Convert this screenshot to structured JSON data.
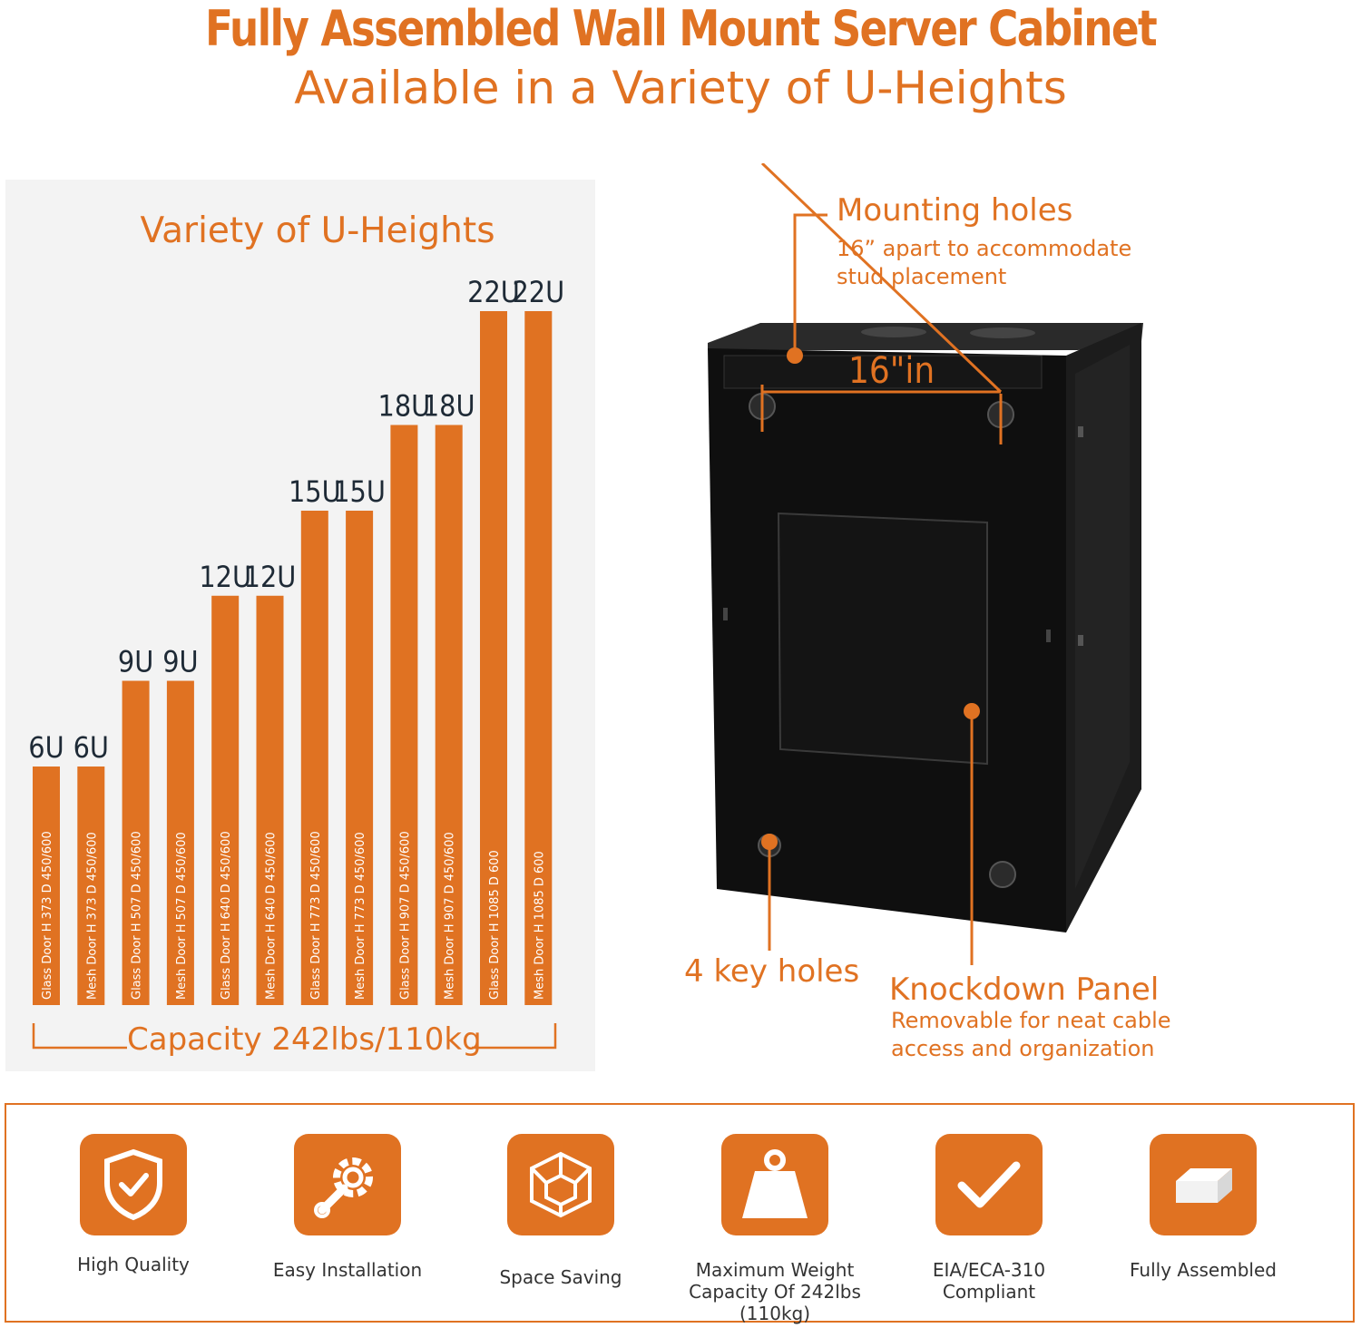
{
  "header": {
    "title": "Fully Assembled Wall Mount Server Cabinet",
    "subtitle": "Available in a Variety of U-Heights"
  },
  "colors": {
    "accent": "#e07222",
    "panel_bg": "#f3f3f3",
    "cabinet": "#111111",
    "label_dark": "#1e2a36"
  },
  "chart_data": {
    "type": "bar",
    "title": "Variety of U-Heights",
    "footer": "Capacity 242lbs/110kg",
    "bars": [
      {
        "u": "6U",
        "height_mm": 373,
        "door": "Glass Door",
        "text": "H 373  D 450/600"
      },
      {
        "u": "6U",
        "height_mm": 373,
        "door": "Mesh Door",
        "text": "H 373  D 450/600"
      },
      {
        "u": "9U",
        "height_mm": 507,
        "door": "Glass Door",
        "text": "H 507  D 450/600"
      },
      {
        "u": "9U",
        "height_mm": 507,
        "door": "Mesh Door",
        "text": "H 507  D 450/600"
      },
      {
        "u": "12U",
        "height_mm": 640,
        "door": "Glass Door",
        "text": "H 640  D 450/600"
      },
      {
        "u": "12U",
        "height_mm": 640,
        "door": "Mesh Door",
        "text": "H 640  D 450/600"
      },
      {
        "u": "15U",
        "height_mm": 773,
        "door": "Glass Door",
        "text": "H 773  D 450/600"
      },
      {
        "u": "15U",
        "height_mm": 773,
        "door": "Mesh Door",
        "text": "H 773  D 450/600"
      },
      {
        "u": "18U",
        "height_mm": 907,
        "door": "Glass Door",
        "text": "H 907  D 450/600"
      },
      {
        "u": "18U",
        "height_mm": 907,
        "door": "Mesh Door",
        "text": "H 907  D 450/600"
      },
      {
        "u": "22U",
        "height_mm": 1085,
        "door": "Glass Door",
        "text": "H 1085  D 600"
      },
      {
        "u": "22U",
        "height_mm": 1085,
        "door": "Mesh Door",
        "text": "H 1085  D 600"
      }
    ]
  },
  "callouts": {
    "mounting_title": "Mounting holes",
    "mounting_sub1": "16” apart to accommodate",
    "mounting_sub2": "stud placement",
    "distance_label": "16\"in",
    "keyholes": "4 key holes",
    "knockdown_title": "Knockdown Panel",
    "knockdown_sub1": "Removable for neat cable",
    "knockdown_sub2": "access and organization"
  },
  "features": [
    {
      "icon": "shield-check-icon",
      "label": "High Quality"
    },
    {
      "icon": "gear-wrench-icon",
      "label": "Easy Installation"
    },
    {
      "icon": "cube-icon",
      "label": "Space Saving"
    },
    {
      "icon": "weight-icon",
      "label": "Maximum Weight\nCapacity Of 242lbs (110kg)"
    },
    {
      "icon": "checkmark-icon",
      "label": "EIA/ECA-310\nCompliant"
    },
    {
      "icon": "box-icon",
      "label": "Fully Assembled"
    }
  ]
}
